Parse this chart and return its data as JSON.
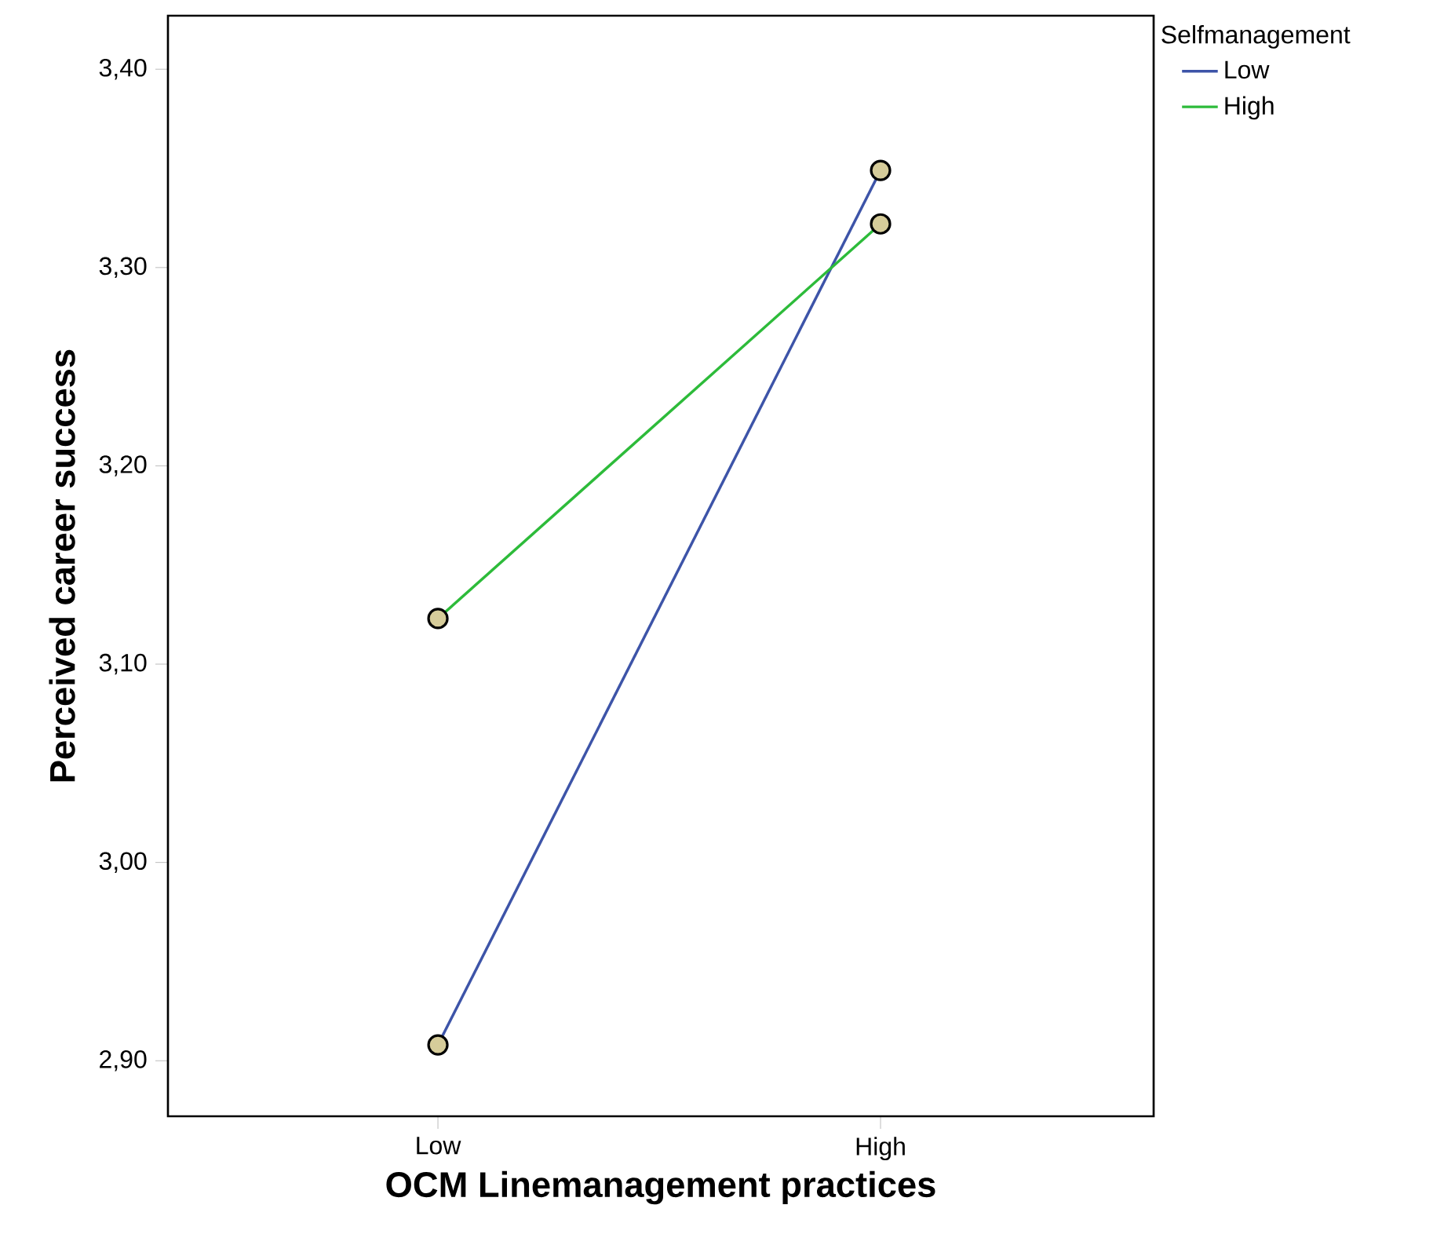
{
  "chart_data": {
    "type": "line",
    "xlabel": "OCM Linemanagement practices",
    "ylabel": "Perceived career success",
    "legend_title": "Selfmanagement",
    "categories": [
      "Low",
      "High"
    ],
    "series": [
      {
        "name": "Low",
        "color": "#3d54a8",
        "values": [
          2.908,
          3.349
        ]
      },
      {
        "name": "High",
        "color": "#2dbb3a",
        "values": [
          3.123,
          3.322
        ]
      }
    ],
    "ylim": [
      2.872,
      3.427
    ],
    "yticks": [
      {
        "value": 2.9,
        "label": "2,90"
      },
      {
        "value": 3.0,
        "label": "3,00"
      },
      {
        "value": 3.1,
        "label": "3,10"
      },
      {
        "value": 3.2,
        "label": "3,20"
      },
      {
        "value": 3.3,
        "label": "3,30"
      },
      {
        "value": 3.4,
        "label": "3,40"
      }
    ],
    "marker": "circle",
    "legend": "top right",
    "grid": false
  }
}
